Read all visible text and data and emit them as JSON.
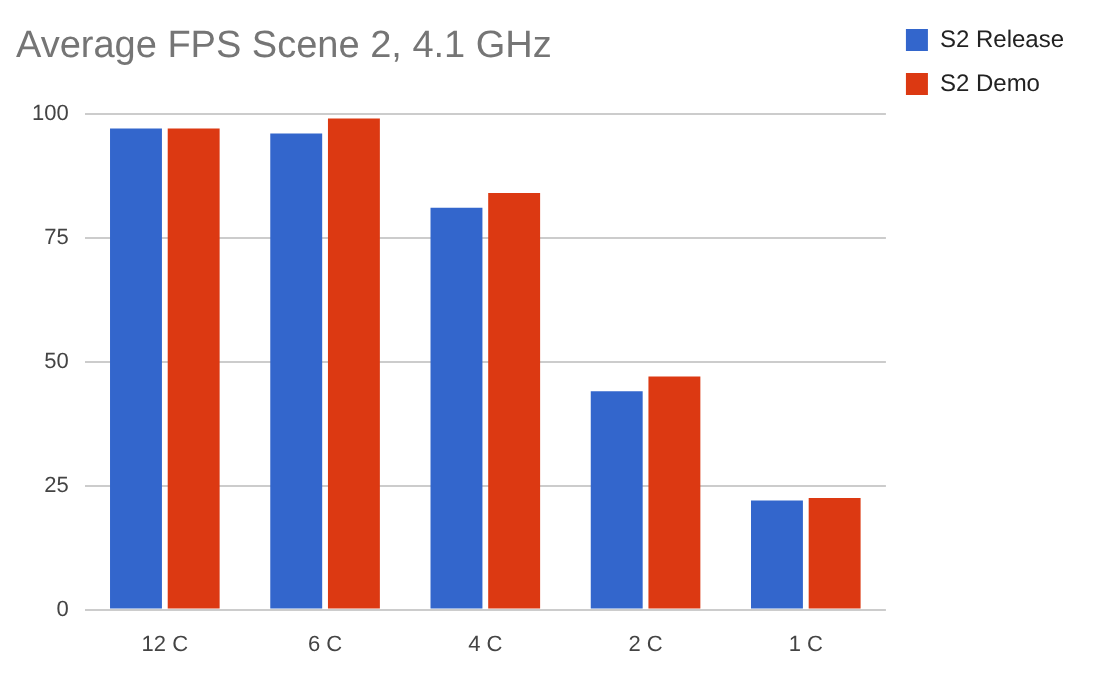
{
  "chart_data": {
    "type": "bar",
    "title": "Average FPS Scene 2, 4.1 GHz",
    "categories": [
      "12 C",
      "6 C",
      "4 C",
      "2 C",
      "1 C"
    ],
    "series": [
      {
        "name": "S2 Release",
        "color": "#3366cc",
        "values": [
          97,
          96,
          81,
          44,
          22
        ]
      },
      {
        "name": "S2 Demo",
        "color": "#dc3912",
        "values": [
          97,
          99,
          84,
          47,
          22.5
        ]
      }
    ],
    "ylim": [
      0,
      100
    ],
    "yticks": [
      0,
      25,
      50,
      75,
      100
    ],
    "grid": "y",
    "legend": "top right"
  }
}
